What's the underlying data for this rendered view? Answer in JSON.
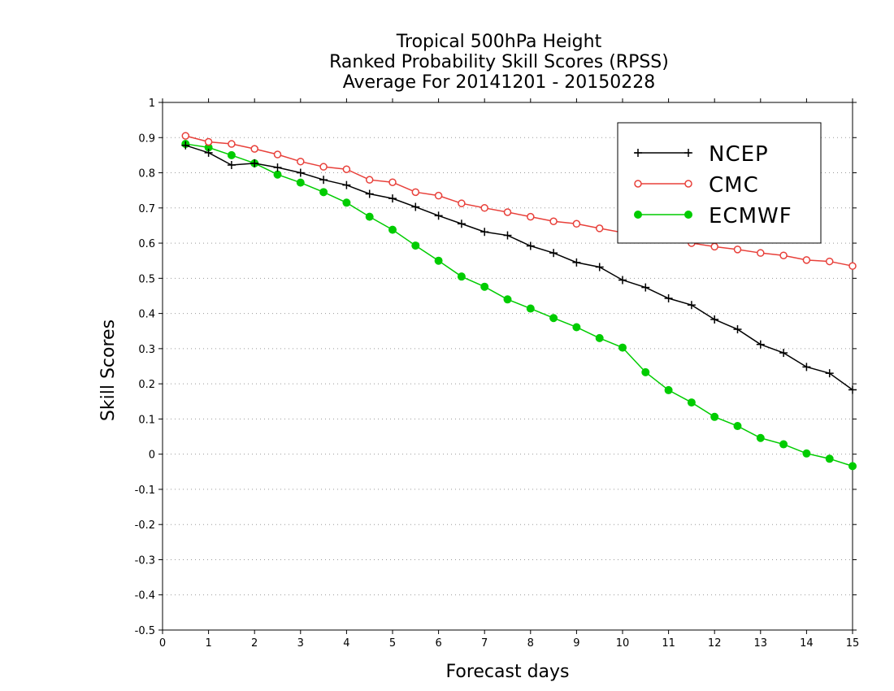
{
  "chart_data": {
    "type": "line",
    "title_lines": [
      "Tropical 500hPa Height",
      "Ranked Probability Skill Scores (RPSS)",
      " Average For 20141201 - 20150228"
    ],
    "xlabel": "Forecast days",
    "ylabel": "Skill Scores",
    "xlim": [
      0,
      15
    ],
    "ylim": [
      -0.5,
      1
    ],
    "xticks": [
      0,
      1,
      2,
      3,
      4,
      5,
      6,
      7,
      8,
      9,
      10,
      11,
      12,
      13,
      14,
      15
    ],
    "yticks": [
      -0.5,
      -0.4,
      -0.3,
      -0.2,
      -0.1,
      0,
      0.1,
      0.2,
      0.3,
      0.4,
      0.5,
      0.6,
      0.7,
      0.8,
      0.9,
      1
    ],
    "ytick_labels": [
      "-0.5",
      "-0.4",
      "-0.3",
      "-0.2",
      "-0.1",
      "0",
      "0.1",
      "0.2",
      "0.3",
      "0.4",
      "0.5",
      "0.6",
      "0.7",
      "0.8",
      "0.9",
      "1"
    ],
    "grid": "horizontal-dotted",
    "legend_position": "top-right",
    "x": [
      0.5,
      1,
      1.5,
      2,
      2.5,
      3,
      3.5,
      4,
      4.5,
      5,
      5.5,
      6,
      6.5,
      7,
      7.5,
      8,
      8.5,
      9,
      9.5,
      10,
      10.5,
      11,
      11.5,
      12,
      12.5,
      13,
      13.5,
      14,
      14.5,
      15
    ],
    "series": [
      {
        "name": "NCEP",
        "color": "#000000",
        "marker": "plus",
        "values": [
          0.878,
          0.857,
          0.822,
          0.827,
          0.815,
          0.8,
          0.78,
          0.765,
          0.74,
          0.727,
          0.703,
          0.678,
          0.655,
          0.632,
          0.622,
          0.592,
          0.572,
          0.545,
          0.532,
          0.495,
          0.474,
          0.443,
          0.424,
          0.383,
          0.355,
          0.312,
          0.288,
          0.248,
          0.23,
          0.183
        ]
      },
      {
        "name": "CMC",
        "color": "#e8403a",
        "marker": "open-circle",
        "values": [
          0.905,
          0.888,
          0.882,
          0.868,
          0.852,
          0.832,
          0.817,
          0.81,
          0.78,
          0.773,
          0.745,
          0.735,
          0.713,
          0.7,
          0.688,
          0.675,
          0.662,
          0.655,
          0.642,
          0.63,
          0.622,
          0.61,
          0.6,
          0.59,
          0.582,
          0.572,
          0.565,
          0.552,
          0.548,
          0.535
        ]
      },
      {
        "name": "ECMWF",
        "color": "#00cc00",
        "marker": "filled-circle",
        "values": [
          0.882,
          0.872,
          0.85,
          0.827,
          0.795,
          0.772,
          0.745,
          0.715,
          0.675,
          0.638,
          0.593,
          0.55,
          0.505,
          0.476,
          0.44,
          0.414,
          0.387,
          0.361,
          0.33,
          0.303,
          0.233,
          0.182,
          0.147,
          0.106,
          0.08,
          0.046,
          0.028,
          0.002,
          -0.013,
          -0.034
        ]
      }
    ]
  }
}
